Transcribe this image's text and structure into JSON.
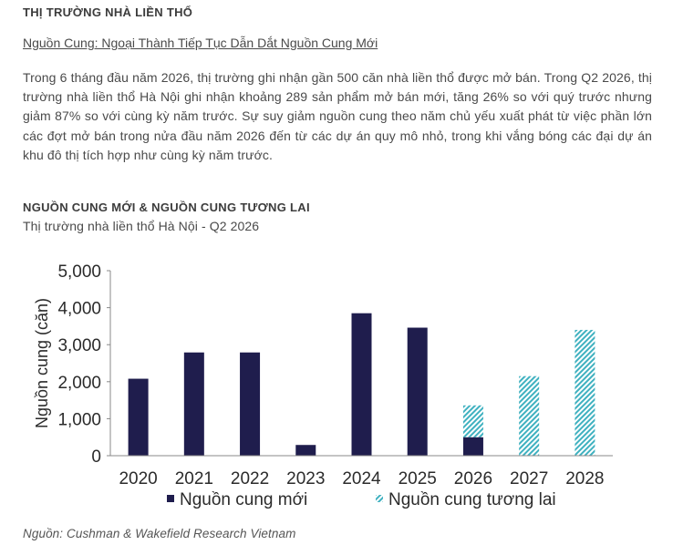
{
  "section_title": "THỊ TRƯỜNG NHÀ LIỀN THỔ",
  "subheading": "Nguồn Cung: Ngoại Thành Tiếp Tục Dẫn Dắt Nguồn Cung Mới",
  "paragraph": "Trong 6 tháng đầu năm 2026, thị trường ghi nhận gần 500 căn nhà liền thổ được mở bán. Trong Q2 2026, thị trường nhà liền thổ Hà Nội ghi nhận khoảng 289 sản phẩm mở bán mới, tăng 26% so với quý trước nhưng giảm 87% so với cùng kỳ năm trước. Sự suy giảm nguồn cung theo năm chủ yếu xuất phát từ việc phần lớn các đợt mở bán trong nửa đầu năm 2026 đến từ các dự án quy mô nhỏ, trong khi vắng bóng các đại dự án khu đô thị tích hợp như cùng kỳ năm trước.",
  "source": "Nguồn: Cushman & Wakefield Research Vietnam",
  "colors": {
    "new_supply": "#1f1d4d",
    "future_supply": "#3fb1c0"
  },
  "chart_data": {
    "type": "bar",
    "stacked": true,
    "title": "NGUỒN CUNG MỚI & NGUỒN CUNG TƯƠNG LAI",
    "subtitle": "Thị trường nhà liền thổ Hà Nội - Q2 2026",
    "xlabel": "",
    "ylabel": "Nguồn cung (căn)",
    "categories": [
      "2020",
      "2021",
      "2022",
      "2023",
      "2024",
      "2025",
      "2026",
      "2027",
      "2028"
    ],
    "series": [
      {
        "name": "Nguồn cung mới",
        "values": [
          2080,
          2790,
          2790,
          290,
          3850,
          3460,
          500,
          0,
          0
        ]
      },
      {
        "name": "Nguồn cung tương lai",
        "values": [
          0,
          0,
          0,
          0,
          0,
          0,
          860,
          2150,
          3400
        ]
      }
    ],
    "ylim": [
      0,
      5000
    ],
    "yticks": [
      0,
      1000,
      2000,
      3000,
      4000,
      5000
    ],
    "ytick_labels": [
      "0",
      "1,000",
      "2,000",
      "3,000",
      "4,000",
      "5,000"
    ],
    "grid": false,
    "legend_position": "bottom"
  }
}
